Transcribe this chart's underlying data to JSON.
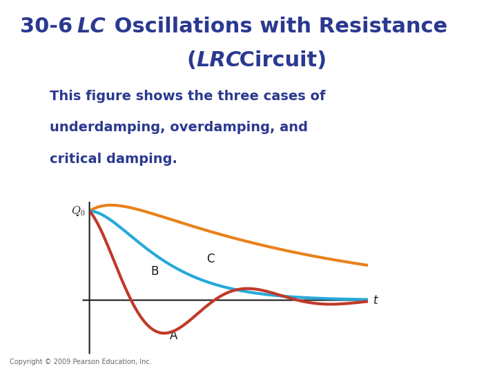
{
  "title_color": "#2b3990",
  "body_color": "#2b3990",
  "bg_color": "#ffffff",
  "curve_A_color": "#c0392b",
  "curve_B_color": "#27a9d9",
  "curve_C_color": "#e8821a",
  "label_color": "#1a1a1a",
  "axis_color": "#1a1a1a",
  "copyright": "Copyright © 2009 Pearson Education, Inc.",
  "body_line1": "This figure shows the three cases of",
  "body_line2": "underdamping, overdamping, and",
  "body_line3": "critical damping.",
  "label_A": "A",
  "label_B": "B",
  "label_C": "C",
  "t_label": "t",
  "title_fontsize": 22,
  "body_fontsize": 14,
  "copyright_fontsize": 7
}
